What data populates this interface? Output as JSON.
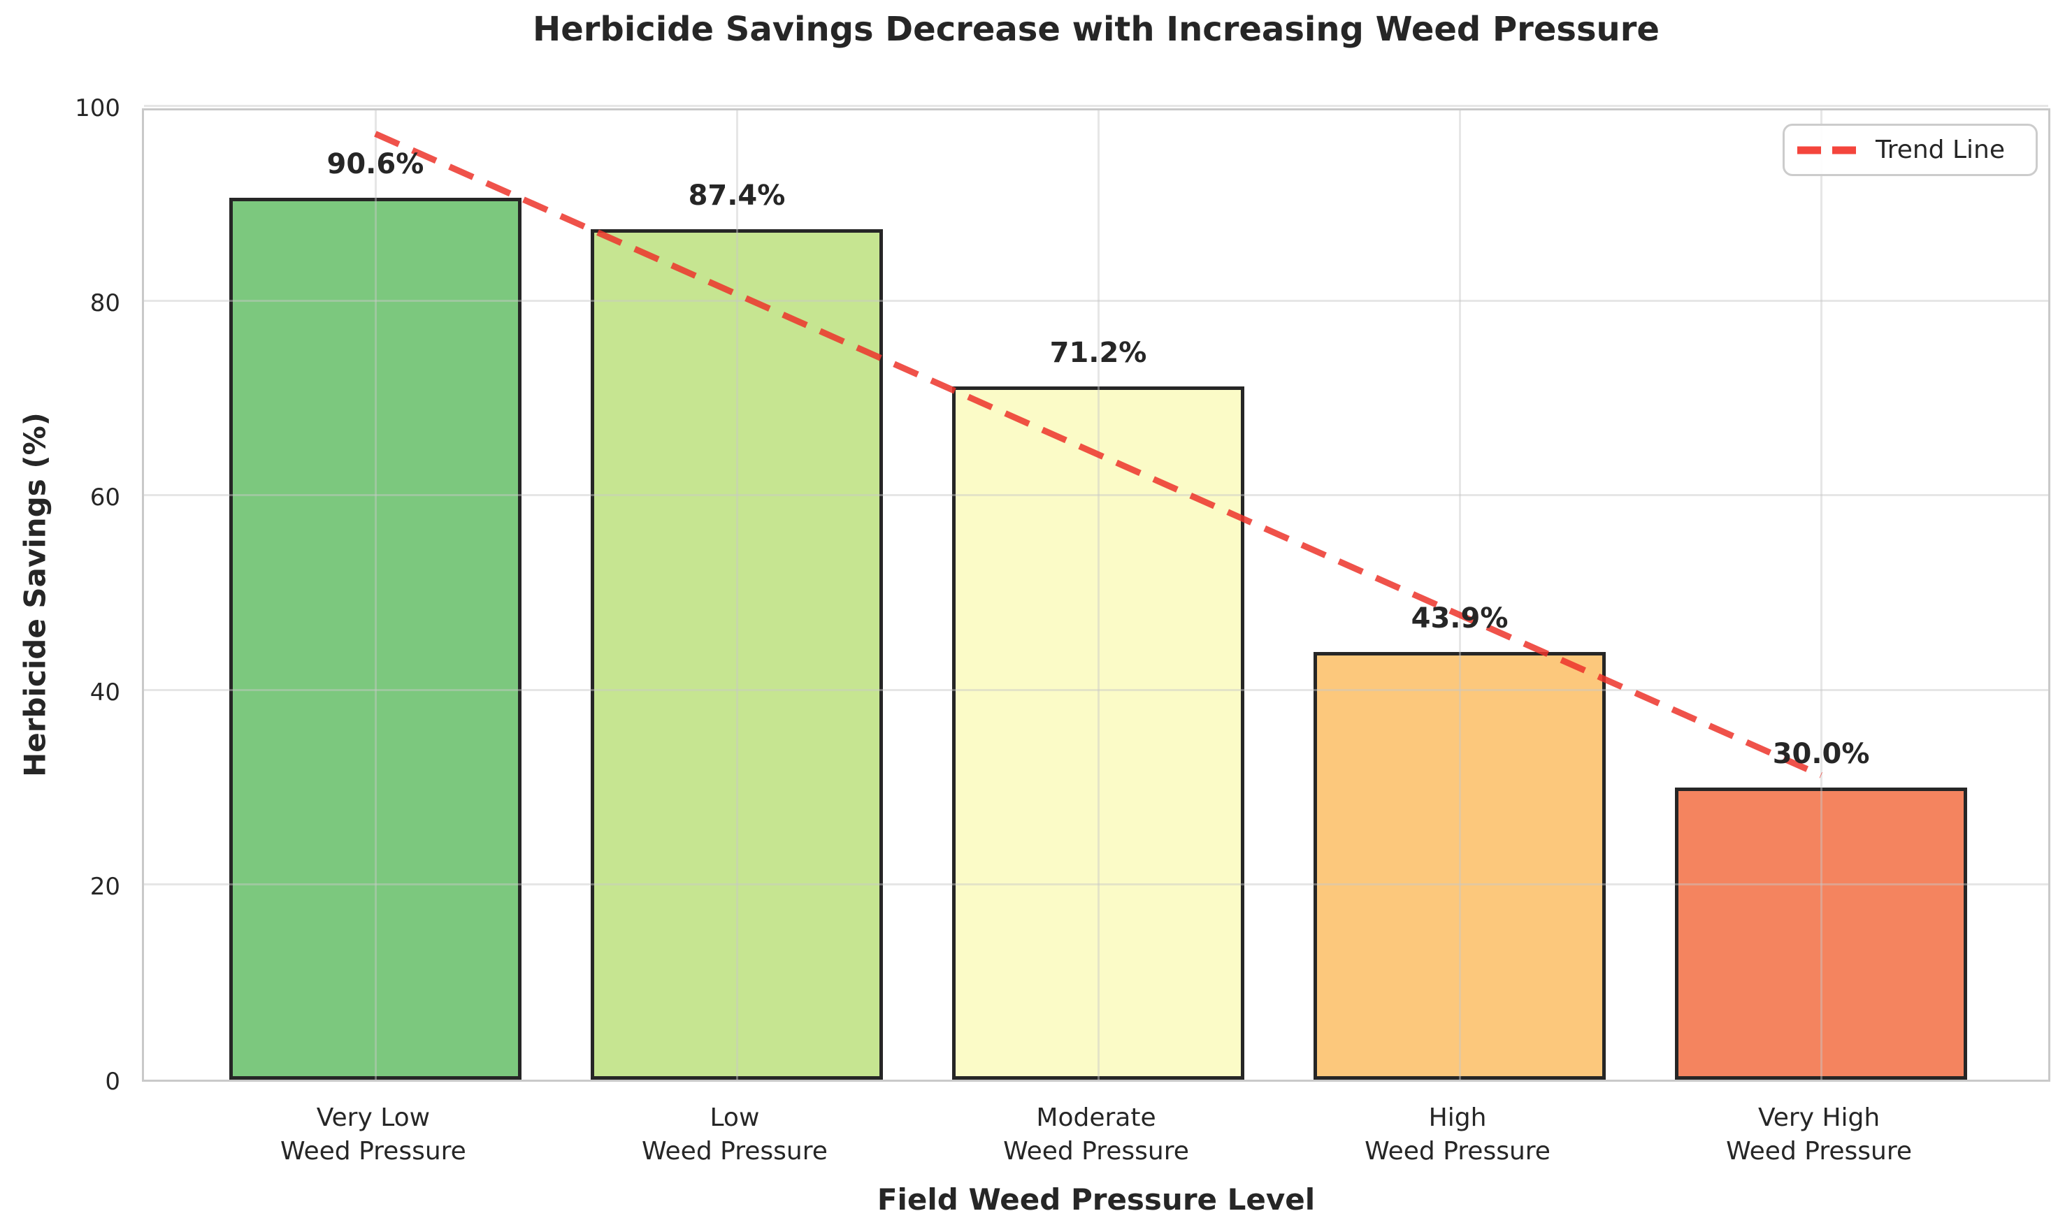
{
  "chart_data": {
    "type": "bar",
    "title": "Herbicide Savings Decrease with Increasing Weed Pressure",
    "xlabel": "Field Weed Pressure Level",
    "ylabel": "Herbicide Savings (%)",
    "categories": [
      [
        "Very Low",
        "Weed Pressure"
      ],
      [
        "Low",
        "Weed Pressure"
      ],
      [
        "Moderate",
        "Weed Pressure"
      ],
      [
        "High",
        "Weed Pressure"
      ],
      [
        "Very High",
        "Weed Pressure"
      ]
    ],
    "values": [
      90.6,
      87.4,
      71.2,
      43.9,
      30.0
    ],
    "value_labels": [
      "90.6%",
      "87.4%",
      "71.2%",
      "43.9%",
      "30.0%"
    ],
    "bar_colors": [
      "#7cc87e",
      "#c6e591",
      "#fbfbc7",
      "#fcc87c",
      "#f4845f"
    ],
    "bar_edge_color": "#262626",
    "ylim": [
      0,
      100
    ],
    "yticks": [
      0,
      20,
      40,
      60,
      80,
      100
    ],
    "grid": true,
    "legend_position": "upper right",
    "trend_line": {
      "label": "Trend Line",
      "color": "#ed342b",
      "style": "dashed",
      "y_start": 97.6,
      "y_end": 31.7
    }
  }
}
